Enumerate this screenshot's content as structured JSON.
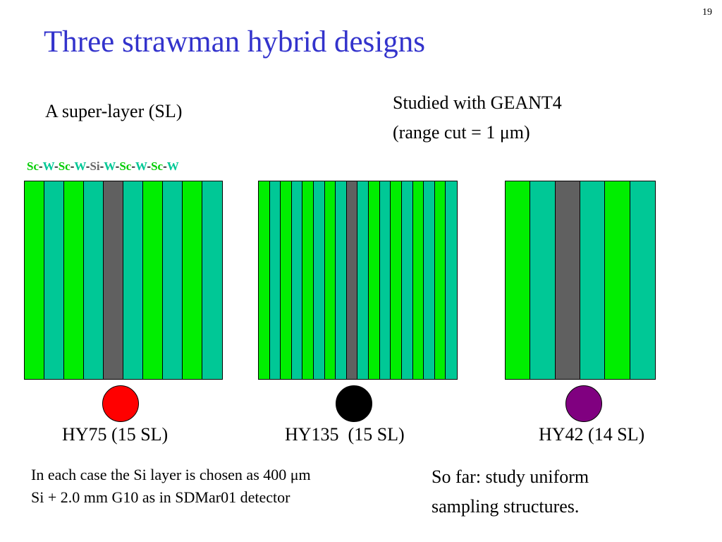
{
  "page": {
    "number": "19"
  },
  "title": "Three strawman hybrid designs",
  "subtitle_left": "A super-layer (SL)",
  "subtitle_right_line1": "Studied with GEANT4",
  "subtitle_right_line2": "(range cut = 1 μm)",
  "sequence": [
    {
      "text": "Sc",
      "color": "#00cc00"
    },
    {
      "text": "-",
      "color": "#000000"
    },
    {
      "text": "W",
      "color": "#00c896"
    },
    {
      "text": "-",
      "color": "#000000"
    },
    {
      "text": "Sc",
      "color": "#00cc00"
    },
    {
      "text": "-",
      "color": "#000000"
    },
    {
      "text": "W",
      "color": "#00c896"
    },
    {
      "text": "-",
      "color": "#000000"
    },
    {
      "text": "Si",
      "color": "#666666"
    },
    {
      "text": "-",
      "color": "#000000"
    },
    {
      "text": "W",
      "color": "#00c896"
    },
    {
      "text": "-",
      "color": "#000000"
    },
    {
      "text": "Sc",
      "color": "#00cc00"
    },
    {
      "text": "-",
      "color": "#000000"
    },
    {
      "text": "W",
      "color": "#00c896"
    },
    {
      "text": "-",
      "color": "#000000"
    },
    {
      "text": "Sc",
      "color": "#00cc00"
    },
    {
      "text": "-",
      "color": "#000000"
    },
    {
      "text": "W",
      "color": "#00c896"
    }
  ],
  "colors": {
    "sc": "#00ee00",
    "w": "#00c896",
    "si": "#606060"
  },
  "designs": [
    {
      "label": "HY75 (15 SL)",
      "dot_color": "#ff0000",
      "layers": [
        "sc",
        "w",
        "sc",
        "w",
        "si",
        "w",
        "sc",
        "w",
        "sc",
        "w"
      ]
    },
    {
      "label": "HY135  (15 SL)",
      "dot_color": "#000000",
      "layers": [
        "sc",
        "w",
        "sc",
        "w",
        "sc",
        "w",
        "sc",
        "w",
        "si",
        "w",
        "sc",
        "w",
        "sc",
        "w",
        "sc",
        "w",
        "sc",
        "w"
      ]
    },
    {
      "label": "HY42 (14 SL)",
      "dot_color": "#800080",
      "layers": [
        "sc",
        "w",
        "si",
        "w",
        "sc",
        "w"
      ]
    }
  ],
  "note_left_line1": "In each case the Si layer is chosen as 400 μm",
  "note_left_line2": "Si + 2.0 mm G10 as in SDMar01 detector",
  "note_right_line1": "So far: study uniform",
  "note_right_line2": "sampling structures."
}
